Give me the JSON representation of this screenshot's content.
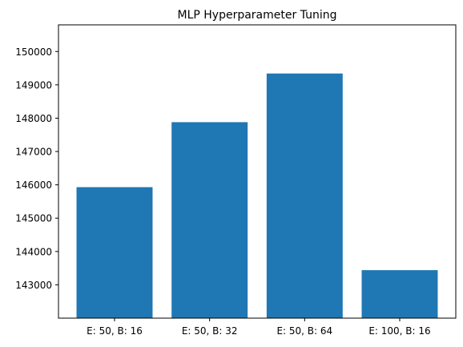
{
  "chart_data": {
    "type": "bar",
    "title": "MLP Hyperparameter Tuning",
    "xlabel": "",
    "ylabel": "",
    "categories": [
      "E: 50, B: 16",
      "E: 50, B: 32",
      "E: 50, B: 64",
      "E: 100, B: 16"
    ],
    "values": [
      145930,
      147880,
      149340,
      143440
    ],
    "ylim": [
      142000,
      150800
    ],
    "yticks": [
      143000,
      144000,
      145000,
      146000,
      147000,
      148000,
      149000,
      150000
    ],
    "grid": false,
    "legend": "none",
    "bar_color": "#1f77b4"
  }
}
